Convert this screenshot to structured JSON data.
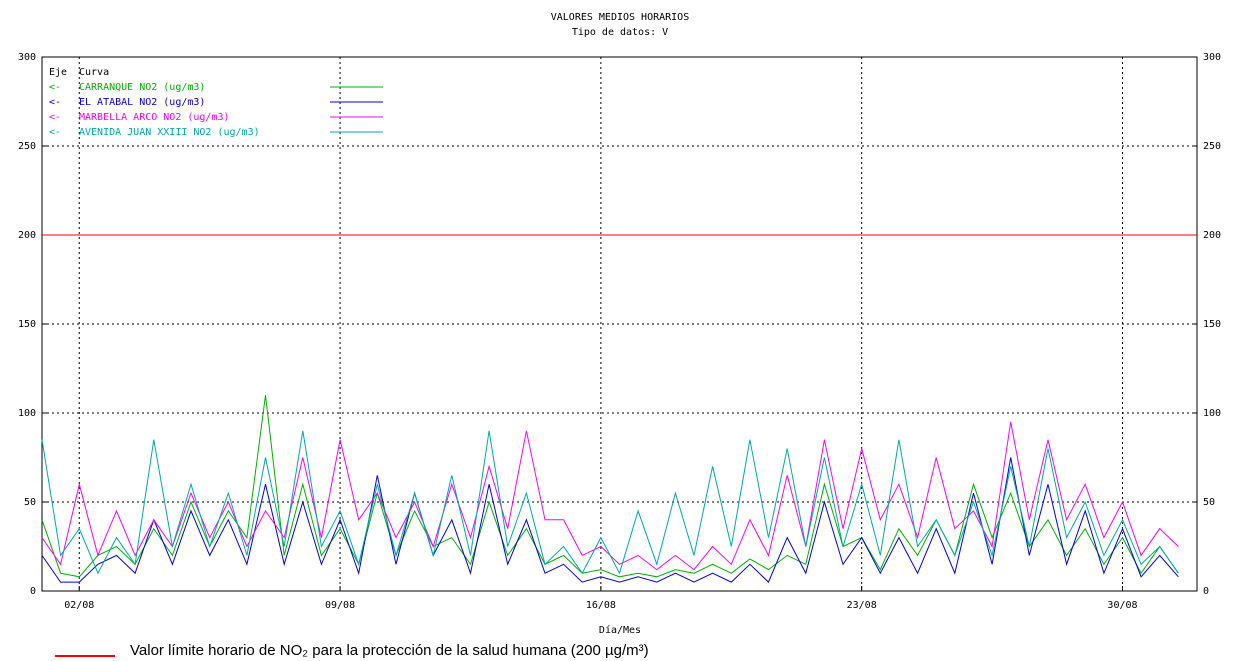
{
  "chart_data": {
    "type": "line",
    "title": "VALORES MEDIOS HORARIOS",
    "subtitle": "Tipo de datos:  V",
    "x_label": "Día/Mes",
    "legend_header": [
      "Eje",
      "Curva"
    ],
    "x": [
      1,
      1.5,
      2,
      2.5,
      3,
      3.5,
      4,
      4.5,
      5,
      5.5,
      6,
      6.5,
      7,
      7.5,
      8,
      8.5,
      9,
      9.5,
      10,
      10.5,
      11,
      11.5,
      12,
      12.5,
      13,
      13.5,
      14,
      14.5,
      15,
      15.5,
      16,
      16.5,
      17,
      17.5,
      18,
      18.5,
      19,
      19.5,
      20,
      20.5,
      21,
      21.5,
      22,
      22.5,
      23,
      23.5,
      24,
      24.5,
      25,
      25.5,
      26,
      26.5,
      27,
      27.5,
      28,
      28.5,
      29,
      29.5,
      30,
      30.5,
      31,
      31.5
    ],
    "xlim": [
      1,
      32
    ],
    "xticks": [
      {
        "value": 2,
        "label": "02/08"
      },
      {
        "value": 9,
        "label": "09/08"
      },
      {
        "value": 16,
        "label": "16/08"
      },
      {
        "value": 23,
        "label": "23/08"
      },
      {
        "value": 30,
        "label": "30/08"
      }
    ],
    "ylim": [
      0,
      300
    ],
    "yticks": [
      0,
      50,
      100,
      150,
      200,
      250,
      300
    ],
    "grid": true,
    "series": [
      {
        "name": "CARRANQUE NO2  (ug/m3)",
        "axis_label": "<-",
        "color": "#00b000",
        "values": [
          40,
          10,
          8,
          20,
          25,
          15,
          35,
          20,
          50,
          25,
          45,
          30,
          110,
          20,
          60,
          20,
          35,
          15,
          55,
          20,
          45,
          25,
          30,
          15,
          50,
          20,
          35,
          15,
          20,
          10,
          12,
          8,
          10,
          8,
          12,
          10,
          15,
          10,
          18,
          12,
          20,
          15,
          60,
          25,
          30,
          12,
          35,
          20,
          40,
          20,
          60,
          30,
          55,
          25,
          40,
          20,
          35,
          15,
          30,
          10,
          25,
          10
        ]
      },
      {
        "name": "EL ATABAL NO2  (ug/m3)",
        "axis_label": "<-",
        "color": "#0000e0",
        "values": [
          20,
          5,
          5,
          15,
          20,
          10,
          40,
          15,
          45,
          20,
          40,
          15,
          60,
          15,
          50,
          15,
          40,
          10,
          65,
          15,
          55,
          20,
          40,
          10,
          60,
          15,
          40,
          10,
          15,
          5,
          8,
          5,
          8,
          5,
          10,
          5,
          10,
          5,
          15,
          5,
          30,
          10,
          50,
          15,
          30,
          10,
          30,
          10,
          35,
          10,
          55,
          15,
          75,
          20,
          60,
          15,
          45,
          10,
          35,
          8,
          20,
          8
        ]
      },
      {
        "name": "MARBELLA ARCO NO2  (ug/m3)",
        "axis_label": "<-",
        "color": "#ff00ff",
        "values": [
          30,
          15,
          60,
          20,
          45,
          20,
          40,
          25,
          55,
          30,
          50,
          25,
          45,
          30,
          75,
          30,
          85,
          40,
          55,
          30,
          50,
          25,
          60,
          30,
          70,
          35,
          90,
          40,
          40,
          20,
          25,
          15,
          20,
          12,
          20,
          12,
          25,
          15,
          40,
          20,
          65,
          25,
          85,
          35,
          80,
          40,
          60,
          30,
          75,
          35,
          45,
          25,
          95,
          40,
          85,
          40,
          60,
          30,
          50,
          20,
          35,
          25
        ]
      },
      {
        "name": "AVENIDA JUAN XXIII NO2  (ug/m3)",
        "axis_label": "<-",
        "color": "#00a8a8",
        "values": [
          85,
          20,
          35,
          10,
          30,
          15,
          85,
          25,
          60,
          25,
          55,
          20,
          75,
          25,
          90,
          25,
          45,
          15,
          60,
          20,
          55,
          20,
          65,
          20,
          90,
          25,
          55,
          15,
          25,
          10,
          30,
          10,
          45,
          15,
          55,
          20,
          70,
          25,
          85,
          30,
          80,
          25,
          75,
          25,
          60,
          20,
          85,
          25,
          40,
          20,
          50,
          20,
          70,
          25,
          80,
          30,
          50,
          20,
          40,
          15,
          25,
          10
        ]
      }
    ],
    "reference_line": {
      "value": 200,
      "color": "#ff0000"
    },
    "footnote": "Valor límite horario de NO₂ para la protección de la salud humana (200 µg/m³)"
  }
}
